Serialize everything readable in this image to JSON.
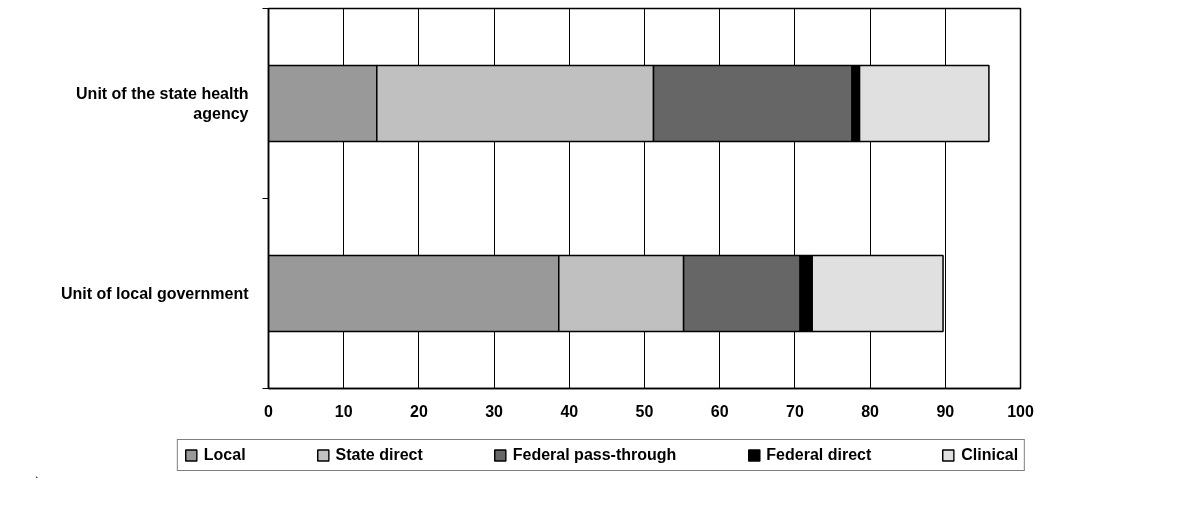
{
  "chart_data": {
    "type": "bar",
    "orientation": "horizontal",
    "stacked": true,
    "categories": [
      "Unit of the state health agency",
      "Unit of local government"
    ],
    "series": [
      {
        "name": "Local",
        "color": "#999999",
        "values": [
          14.4,
          38.6
        ]
      },
      {
        "name": "State direct",
        "color": "#c0c0c0",
        "values": [
          36.8,
          16.6
        ]
      },
      {
        "name": "Federal pass-through",
        "color": "#666666",
        "values": [
          26.4,
          15.5
        ]
      },
      {
        "name": "Federal direct",
        "color": "#000000",
        "values": [
          1.0,
          1.6
        ]
      },
      {
        "name": "Clinical",
        "color": "#e0e0e0",
        "values": [
          17.2,
          17.4
        ]
      }
    ],
    "xlim": [
      0,
      100
    ],
    "xticks": [
      0,
      10,
      20,
      30,
      40,
      50,
      60,
      70,
      80,
      90,
      100
    ],
    "grid": "x",
    "legend": "bottom"
  }
}
